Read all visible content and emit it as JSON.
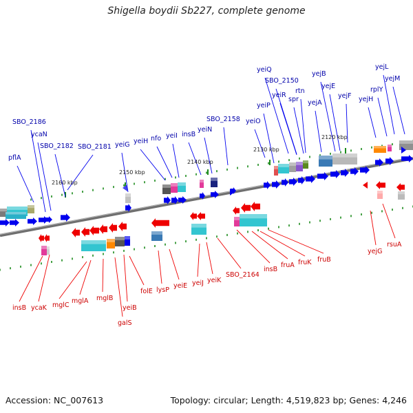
{
  "title": "Shigella boydii Sb227, complete genome",
  "footer": {
    "accession": "Accession: NC_007613",
    "summary": "Topology: circular; Length: 4,519,823 bp; Genes: 4,246"
  },
  "colors": {
    "forward": "#0000ee",
    "reverse": "#ee0000",
    "backbone": "#8c8c8c",
    "tick": "#1a8a1a"
  },
  "scale_labels": [
    "2160 kbp",
    "2150 kbp",
    "2140 kbp",
    "2130 kbp",
    "2120 kbp"
  ],
  "forward_genes": [
    "SBO_2186",
    "ycaN",
    "pflA",
    "SBO_2182",
    "SBO_2181",
    "yeiG",
    "yeiH",
    "nfo",
    "yeiI",
    "insB",
    "yeiN",
    "SBO_2158",
    "yeiO",
    "yeiP",
    "yeiQ",
    "SBO_2150",
    "yeiR",
    "spr",
    "rtn",
    "yejA",
    "yejB",
    "yejE",
    "yejF",
    "yejH",
    "rplY",
    "yejL",
    "yejM"
  ],
  "reverse_genes": [
    "insB",
    "ycaK",
    "mglC",
    "mglA",
    "mglB",
    "galS",
    "yeiB",
    "folE",
    "lysP",
    "yeiE",
    "yeiJ",
    "yeiK",
    "SBO_2164",
    "insB",
    "fruA",
    "fruK",
    "fruB",
    "yejG",
    "rsuA"
  ]
}
